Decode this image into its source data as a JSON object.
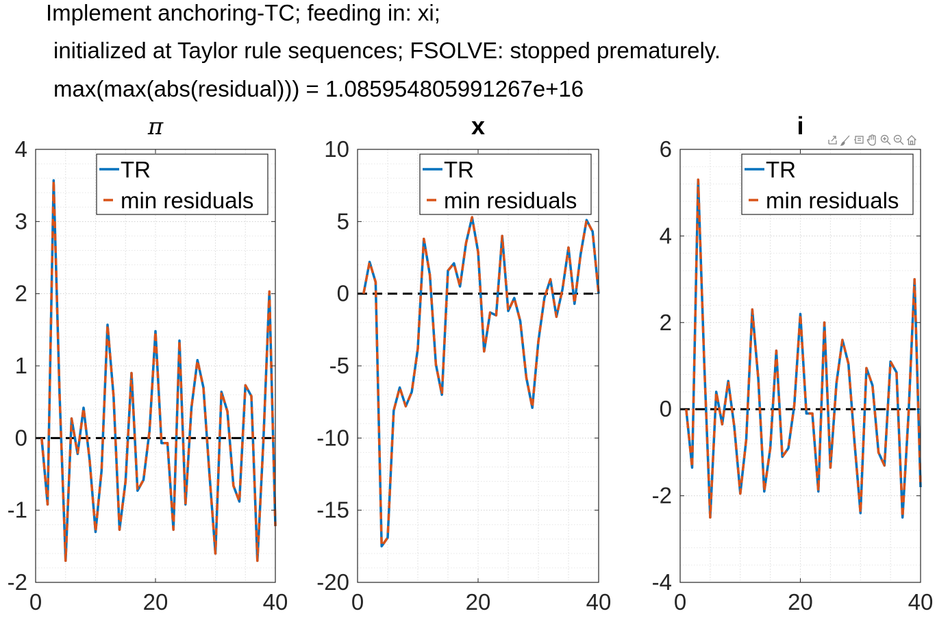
{
  "title_lines": [
    "Implement anchoring-TC; feeding in: xi;",
    "initialized at Taylor rule sequences; FSOLVE: stopped prematurely.",
    "max(max(abs(residual))) = 1.085954805991267e+16"
  ],
  "toolbar_icons": [
    "export-icon",
    "brush-icon",
    "data-tip-icon",
    "pan-icon",
    "zoom-in-icon",
    "zoom-out-icon",
    "home-icon"
  ],
  "colors": {
    "tr": "#0072BD",
    "min_residuals": "#D95319",
    "zero_line": "#000000",
    "grid": "#d9d9d9"
  },
  "chart_data": [
    {
      "type": "line",
      "title": "π",
      "title_style": "italic",
      "xlim": [
        0,
        40
      ],
      "ylim": [
        -2,
        4
      ],
      "xticks": [
        0,
        20,
        40
      ],
      "yticks": [
        4,
        3,
        2,
        1,
        0,
        -1,
        -2
      ],
      "grid": true,
      "legend_position": "top-right",
      "x": [
        1,
        2,
        3,
        4,
        5,
        6,
        7,
        8,
        9,
        10,
        11,
        12,
        13,
        14,
        15,
        16,
        17,
        18,
        19,
        20,
        21,
        22,
        23,
        24,
        25,
        26,
        27,
        28,
        29,
        30,
        31,
        32,
        33,
        34,
        35,
        36,
        37,
        38,
        39,
        40
      ],
      "series": [
        {
          "name": "TR",
          "style": "solid",
          "values": [
            0,
            -0.92,
            3.57,
            0.6,
            -1.7,
            0.27,
            -0.22,
            0.42,
            -0.3,
            -1.3,
            -0.45,
            1.57,
            0.58,
            -1.27,
            -0.6,
            0.9,
            -0.73,
            -0.58,
            0.1,
            1.48,
            -0.07,
            -0.07,
            -1.27,
            1.35,
            -0.92,
            0.42,
            1.08,
            0.7,
            -0.5,
            -1.6,
            0.64,
            0.37,
            -0.66,
            -0.88,
            0.73,
            0.58,
            -1.7,
            -0.05,
            2.03,
            -1.22
          ]
        },
        {
          "name": "min residuals",
          "style": "dashed",
          "values": [
            0,
            -0.92,
            3.57,
            0.6,
            -1.7,
            0.27,
            -0.22,
            0.42,
            -0.3,
            -1.3,
            -0.45,
            1.57,
            0.58,
            -1.27,
            -0.6,
            0.9,
            -0.73,
            -0.58,
            0.1,
            1.48,
            -0.07,
            -0.07,
            -1.27,
            1.35,
            -0.92,
            0.42,
            1.08,
            0.7,
            -0.5,
            -1.6,
            0.64,
            0.37,
            -0.66,
            -0.88,
            0.73,
            0.58,
            -1.7,
            -0.05,
            2.03,
            -1.22
          ]
        }
      ]
    },
    {
      "type": "line",
      "title": "x",
      "title_style": "bold",
      "xlim": [
        0,
        40
      ],
      "ylim": [
        -20,
        10
      ],
      "xticks": [
        0,
        20,
        40
      ],
      "yticks": [
        10,
        5,
        0,
        -5,
        -10,
        -15,
        -20
      ],
      "grid": true,
      "legend_position": "top-right",
      "x": [
        1,
        2,
        3,
        4,
        5,
        6,
        7,
        8,
        9,
        10,
        11,
        12,
        13,
        14,
        15,
        16,
        17,
        18,
        19,
        20,
        21,
        22,
        23,
        24,
        25,
        26,
        27,
        28,
        29,
        30,
        31,
        32,
        33,
        34,
        35,
        36,
        37,
        38,
        39,
        40
      ],
      "series": [
        {
          "name": "TR",
          "style": "solid",
          "values": [
            0,
            2.2,
            0.8,
            -17.5,
            -16.9,
            -8.1,
            -6.5,
            -7.8,
            -6.8,
            -3.8,
            3.8,
            1.3,
            -4.9,
            -7,
            1.6,
            2.1,
            0.5,
            3.5,
            5.3,
            2.9,
            -4,
            -1.3,
            -1.5,
            4,
            -1.2,
            -0.3,
            -1.9,
            -5.8,
            -7.9,
            -3.3,
            -0.3,
            1,
            -1.6,
            0.3,
            3.2,
            -0.7,
            2.7,
            5.1,
            4.3,
            0
          ]
        },
        {
          "name": "min residuals",
          "style": "dashed",
          "values": [
            0,
            2.2,
            0.8,
            -17.5,
            -16.9,
            -8.1,
            -6.5,
            -7.8,
            -6.8,
            -3.8,
            3.8,
            1.3,
            -4.9,
            -7,
            1.6,
            2.1,
            0.5,
            3.5,
            5.3,
            2.9,
            -4,
            -1.3,
            -1.5,
            4,
            -1.2,
            -0.3,
            -1.9,
            -5.8,
            -7.9,
            -3.3,
            -0.3,
            1,
            -1.6,
            0.3,
            3.2,
            -0.7,
            2.7,
            5.1,
            4.3,
            0
          ]
        }
      ]
    },
    {
      "type": "line",
      "title": "i",
      "title_style": "bold",
      "xlim": [
        0,
        40
      ],
      "ylim": [
        -4,
        6
      ],
      "xticks": [
        0,
        20,
        40
      ],
      "yticks": [
        6,
        4,
        2,
        0,
        -2,
        -4
      ],
      "grid": true,
      "legend_position": "top-right",
      "x": [
        1,
        2,
        3,
        4,
        5,
        6,
        7,
        8,
        9,
        10,
        11,
        12,
        13,
        14,
        15,
        16,
        17,
        18,
        19,
        20,
        21,
        22,
        23,
        24,
        25,
        26,
        27,
        28,
        29,
        30,
        31,
        32,
        33,
        34,
        35,
        36,
        37,
        38,
        39,
        40
      ],
      "series": [
        {
          "name": "TR",
          "style": "solid",
          "values": [
            0,
            -1.35,
            5.3,
            1.1,
            -2.5,
            0.4,
            -0.35,
            0.65,
            -0.4,
            -1.95,
            -0.7,
            2.3,
            0.7,
            -1.9,
            -0.9,
            1.35,
            -1.1,
            -0.9,
            0.1,
            2.2,
            -0.1,
            -0.1,
            -1.9,
            2,
            -1.35,
            0.6,
            1.6,
            1.05,
            -0.75,
            -2.4,
            0.95,
            0.55,
            -1,
            -1.3,
            1.1,
            0.85,
            -2.5,
            -0.1,
            3,
            -1.8
          ]
        },
        {
          "name": "min residuals",
          "style": "dashed",
          "values": [
            0,
            -1.35,
            5.3,
            1.1,
            -2.5,
            0.4,
            -0.35,
            0.65,
            -0.4,
            -1.95,
            -0.7,
            2.3,
            0.7,
            -1.9,
            -0.9,
            1.35,
            -1.1,
            -0.9,
            0.1,
            2.2,
            -0.1,
            -0.1,
            -1.9,
            2,
            -1.35,
            0.6,
            1.6,
            1.05,
            -0.75,
            -2.4,
            0.95,
            0.55,
            -1,
            -1.3,
            1.1,
            0.85,
            -2.5,
            -0.1,
            3,
            -1.8
          ]
        }
      ]
    }
  ]
}
